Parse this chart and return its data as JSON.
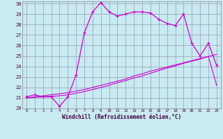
{
  "xlabel": "Windchill (Refroidissement éolien,°C)",
  "bg_color": "#c8eaf0",
  "grid_color": "#9999bb",
  "line_color": "#cc00cc",
  "xlim": [
    -0.5,
    23.5
  ],
  "ylim": [
    20,
    30.2
  ],
  "xticks": [
    0,
    1,
    2,
    3,
    4,
    5,
    6,
    7,
    8,
    9,
    10,
    11,
    12,
    13,
    14,
    15,
    16,
    17,
    18,
    19,
    20,
    21,
    22,
    23
  ],
  "yticks": [
    20,
    21,
    22,
    23,
    24,
    25,
    26,
    27,
    28,
    29,
    30
  ],
  "line1_x": [
    0,
    1,
    2,
    3,
    4,
    5,
    6,
    7,
    8,
    9,
    10,
    11,
    12,
    13,
    14,
    15,
    16,
    17,
    18,
    19,
    20,
    21,
    22,
    23
  ],
  "line1_y": [
    21.0,
    21.1,
    21.2,
    21.3,
    21.4,
    21.5,
    21.65,
    21.8,
    22.0,
    22.2,
    22.4,
    22.6,
    22.8,
    23.1,
    23.3,
    23.55,
    23.75,
    23.95,
    24.15,
    24.35,
    24.55,
    24.75,
    24.95,
    25.15
  ],
  "line2_x": [
    0,
    1,
    2,
    3,
    4,
    5,
    6,
    7,
    8,
    9,
    10,
    11,
    12,
    13,
    14,
    15,
    16,
    17,
    18,
    19,
    20,
    21,
    22,
    23
  ],
  "line2_y": [
    21.0,
    21.05,
    21.1,
    21.15,
    21.2,
    21.3,
    21.45,
    21.6,
    21.8,
    22.0,
    22.2,
    22.45,
    22.65,
    22.9,
    23.1,
    23.35,
    23.6,
    23.85,
    24.05,
    24.3,
    24.5,
    24.7,
    24.95,
    22.2
  ],
  "line3_x": [
    0,
    1,
    2,
    3,
    4,
    5,
    6,
    7,
    8,
    9,
    10,
    11,
    12,
    13,
    14,
    15,
    16,
    17,
    18,
    19,
    20,
    21,
    22,
    23
  ],
  "line3_y": [
    21.1,
    21.3,
    21.1,
    21.1,
    20.2,
    21.1,
    23.2,
    27.2,
    29.2,
    30.1,
    29.2,
    28.8,
    29.0,
    29.2,
    29.2,
    29.1,
    28.5,
    28.1,
    27.9,
    29.0,
    26.2,
    25.0,
    26.2,
    24.1
  ]
}
